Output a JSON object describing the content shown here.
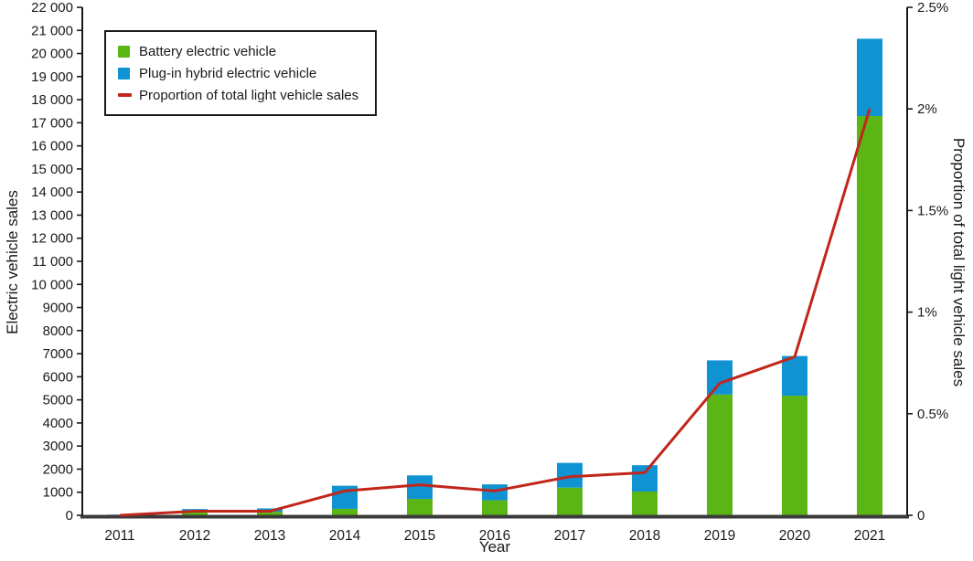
{
  "figure": {
    "xlabel": "Year",
    "ylabel_left": "Electric vehicle sales",
    "ylabel_right": "Proportion of total light vehicle sales",
    "background": "#ffffff"
  },
  "colors": {
    "bev_green": "#5bb514",
    "phev_blue": "#0f93d2",
    "proportion_red": "#c1261b",
    "x_axis": "#3a3a3a",
    "spine": "#1a1a1a",
    "text": "#1a1a1a"
  },
  "legend": {
    "items": [
      {
        "label": "Battery electric vehicle",
        "marker": "square",
        "color": "#5bb514"
      },
      {
        "label": "Plug-in hybrid electric vehicle",
        "marker": "square",
        "color": "#0f93d2"
      },
      {
        "label": "Proportion of total light vehicle sales",
        "marker": "line",
        "color": "#c1261b"
      }
    ]
  },
  "chart_data": {
    "type": "bar",
    "subtype": "stacked-bars-with-line",
    "categories": [
      "2011",
      "2012",
      "2013",
      "2014",
      "2015",
      "2016",
      "2017",
      "2018",
      "2019",
      "2020",
      "2021"
    ],
    "series": [
      {
        "name": "Battery electric vehicle",
        "role": "bar-stack",
        "axis": "left",
        "color": "#5bb514",
        "values": [
          20,
          130,
          150,
          280,
          710,
          650,
          1200,
          1030,
          5230,
          5180,
          17290
        ]
      },
      {
        "name": "Plug-in hybrid electric vehicle",
        "role": "bar-stack",
        "axis": "left",
        "color": "#0f93d2",
        "values": [
          10,
          140,
          150,
          1000,
          1020,
          690,
          1070,
          1140,
          1480,
          1720,
          3350
        ]
      },
      {
        "name": "Proportion of total light vehicle sales",
        "role": "line",
        "axis": "right",
        "color": "#c1261b",
        "values": [
          0.0,
          0.02,
          0.02,
          0.12,
          0.15,
          0.12,
          0.19,
          0.21,
          0.65,
          0.78,
          2.0
        ]
      }
    ],
    "title": "",
    "xlabel": "Year",
    "left_axis": {
      "label": "Electric vehicle sales",
      "min": 0,
      "max": 22000,
      "tick_step": 1000,
      "tick_labels": [
        "0",
        "1000",
        "2000",
        "3000",
        "4000",
        "5000",
        "6000",
        "7000",
        "8000",
        "9000",
        "10 000",
        "11 000",
        "12 000",
        "13 000",
        "14 000",
        "15 000",
        "16 000",
        "17 000",
        "18 000",
        "19 000",
        "20 000",
        "21 000",
        "22 000"
      ]
    },
    "right_axis": {
      "label": "Proportion of total light vehicle sales",
      "min": 0,
      "max": 2.5,
      "tick_step": 0.5,
      "tick_labels": [
        "0",
        "0.5%",
        "1%",
        "1.5%",
        "2%",
        "2.5%"
      ],
      "tick_values": [
        0,
        0.5,
        1,
        1.5,
        2,
        2.5
      ]
    },
    "grid": "off",
    "legend_position": "upper-left-inside"
  }
}
